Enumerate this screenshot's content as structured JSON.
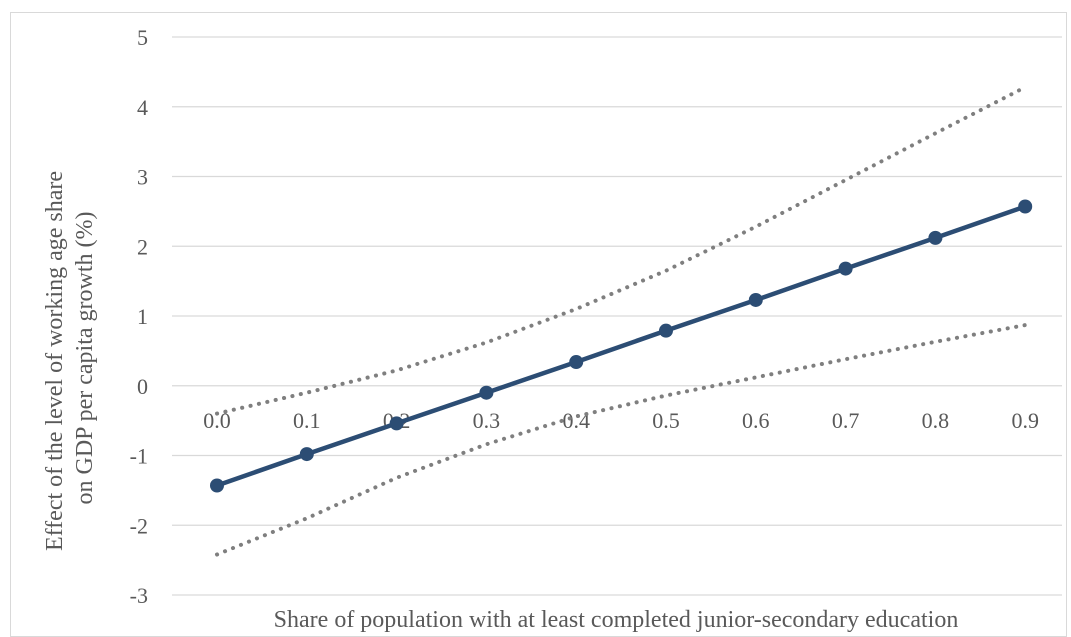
{
  "chart_data": {
    "type": "line",
    "title": "",
    "xlabel": "Share of population with at least completed junior-secondary education",
    "ylabel": "Effect of the level of working age share on GDP per capita growth (%)",
    "ylabel_lines": [
      "Effect of the level of working age share",
      "on GDP per capita growth (%)"
    ],
    "x": [
      0.0,
      0.1,
      0.2,
      0.3,
      0.4,
      0.5,
      0.6,
      0.7,
      0.8,
      0.9
    ],
    "x_tick_labels": [
      "0.0",
      "0.1",
      "0.2",
      "0.3",
      "0.4",
      "0.5",
      "0.6",
      "0.7",
      "0.8",
      "0.9"
    ],
    "ylim": [
      -3,
      5
    ],
    "y_ticks": [
      5,
      4,
      3,
      2,
      1,
      0,
      -1,
      -2,
      -3
    ],
    "y_tick_labels": [
      "5",
      "4",
      "3",
      "2",
      "1",
      "0",
      "-1",
      "-2",
      "-3"
    ],
    "grid": true,
    "legend": "none",
    "series": [
      {
        "style": "solid-marker",
        "color": "#2c4d74",
        "values": [
          -1.43,
          -0.98,
          -0.54,
          -0.1,
          0.34,
          0.79,
          1.23,
          1.68,
          2.12,
          2.57
        ]
      },
      {
        "style": "dotted",
        "color": "#7f7f7f",
        "values": [
          -0.4,
          -0.1,
          0.22,
          0.62,
          1.1,
          1.65,
          2.28,
          2.95,
          3.62,
          4.28
        ]
      },
      {
        "style": "dotted",
        "color": "#7f7f7f",
        "values": [
          -2.42,
          -1.9,
          -1.32,
          -0.84,
          -0.44,
          -0.14,
          0.12,
          0.38,
          0.63,
          0.87
        ]
      }
    ]
  }
}
